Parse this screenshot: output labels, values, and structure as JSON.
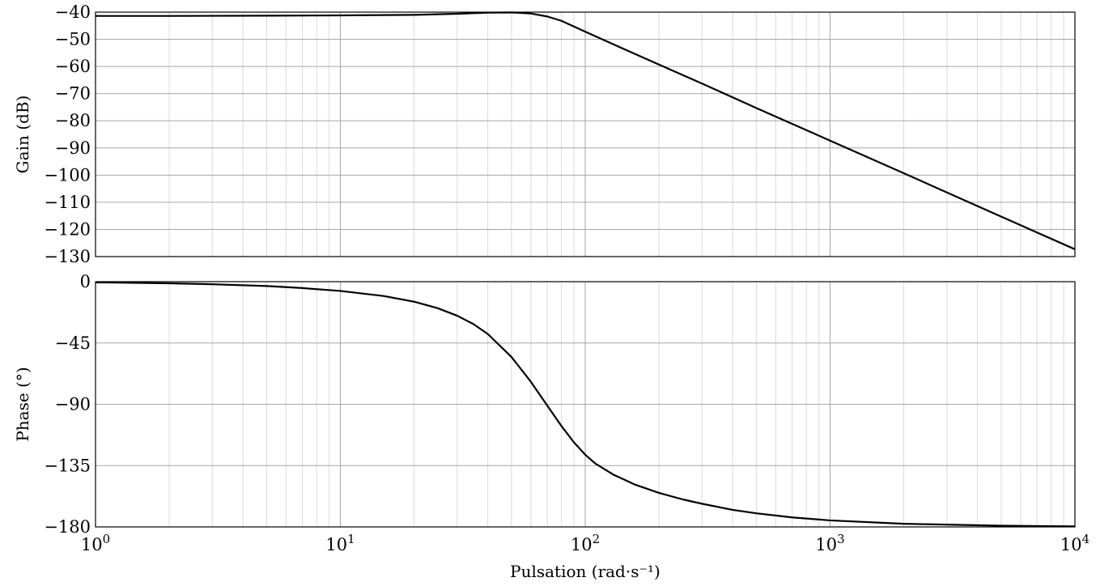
{
  "chart_data": [
    {
      "type": "line",
      "panel": "gain",
      "ylabel": "Gain (dB)",
      "xlabel": "",
      "x_scale": "log",
      "xlim": [
        1,
        10000
      ],
      "ylim": [
        -130,
        -40
      ],
      "yticks": [
        -40,
        -50,
        -60,
        -70,
        -80,
        -90,
        -100,
        -110,
        -120,
        -130
      ],
      "ytick_labels": [
        "−40",
        "−50",
        "−60",
        "−70",
        "−80",
        "−90",
        "−100",
        "−110",
        "−120",
        "−130"
      ],
      "grid": true,
      "series": [
        {
          "x": [
            1,
            2,
            5,
            10,
            20,
            30,
            40,
            50,
            60,
            70,
            80,
            100,
            120,
            150,
            200,
            300,
            500,
            1000,
            2000,
            5000,
            10000
          ],
          "y": [
            -41.4,
            -41.4,
            -41.3,
            -41.2,
            -41,
            -40.6,
            -40.2,
            -40.1,
            -40.5,
            -41.6,
            -43.2,
            -47.2,
            -50.4,
            -54.3,
            -59.3,
            -66.3,
            -75.3,
            -87.3,
            -99.3,
            -115.3,
            -127.3
          ]
        }
      ]
    },
    {
      "type": "line",
      "panel": "phase",
      "ylabel": "Phase (°)",
      "xlabel": "Pulsation (rad·s⁻¹)",
      "x_scale": "log",
      "xlim": [
        1,
        10000
      ],
      "ylim": [
        -180,
        0
      ],
      "yticks": [
        0,
        -45,
        -90,
        -135,
        -180
      ],
      "ytick_labels": [
        "0",
        "−45",
        "−90",
        "−135",
        "−180"
      ],
      "xticks": [
        1,
        10,
        100,
        1000,
        10000
      ],
      "xtick_labels": [
        {
          "base": "10",
          "exp": "0"
        },
        {
          "base": "10",
          "exp": "1"
        },
        {
          "base": "10",
          "exp": "2"
        },
        {
          "base": "10",
          "exp": "3"
        },
        {
          "base": "10",
          "exp": "4"
        }
      ],
      "grid": true,
      "series": [
        {
          "x": [
            1,
            2,
            3,
            5,
            7,
            10,
            15,
            20,
            25,
            30,
            35,
            40,
            50,
            60,
            70,
            80,
            90,
            100,
            110,
            130,
            160,
            200,
            250,
            300,
            400,
            500,
            700,
            1000,
            2000,
            5000,
            10000
          ],
          "y": [
            -0.5,
            -1.2,
            -1.9,
            -3.2,
            -4.7,
            -6.8,
            -10.5,
            -14.7,
            -19.5,
            -25,
            -31.2,
            -38.4,
            -55.3,
            -73.5,
            -91,
            -106,
            -118,
            -127,
            -133.5,
            -141.5,
            -149,
            -155,
            -159.8,
            -163,
            -167.5,
            -170,
            -173,
            -175.2,
            -177.7,
            -179.1,
            -179.6
          ]
        }
      ]
    }
  ]
}
